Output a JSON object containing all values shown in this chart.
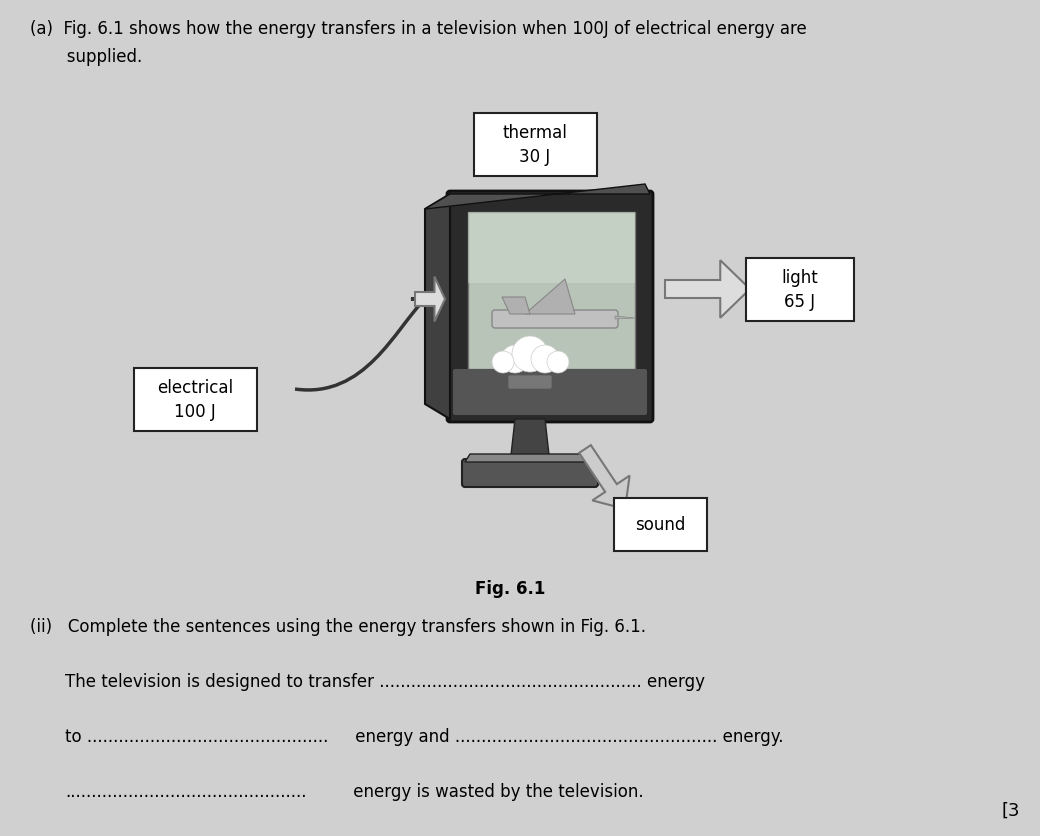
{
  "background_color": "#d0d0d0",
  "box_facecolor": "#ffffff",
  "box_edgecolor": "#222222",
  "arrow_color": "#888888",
  "cable_color": "#333333",
  "tv_body_dark": "#2a2a2a",
  "tv_body_mid": "#555555",
  "tv_screen_bg": "#b8c4b8",
  "tv_screen_light": "#d0dcd0",
  "tv_bezel_bottom": "#666666",
  "tv_stand_dark": "#3a3a3a",
  "tv_stand_light": "#888888",
  "font_size_title": 12,
  "font_size_boxes": 12,
  "font_size_fig_label": 12,
  "font_size_sentences": 12,
  "font_size_mark": 13,
  "title_line1": "(a)  Fig. 6.1 shows how the energy transfers in a television when 100J of electrical energy are",
  "title_line2": "       supplied.",
  "box_thermal_text": "thermal\n30 J",
  "box_light_text": "light\n65 J",
  "box_sound_text": "sound",
  "box_electrical_text": "electrical\n100 J",
  "fig_label": "Fig. 6.1",
  "part_ii": "(ii)   Complete the sentences using the energy transfers shown in Fig. 6.1.",
  "sent1": "The television is designed to transfer .................................................. energy",
  "sent2a": "to ..............................................",
  "sent2b": " energy and .................................................. energy.",
  "sent3a": "..............................................",
  "sent3b": " energy is wasted by the television.",
  "mark": "[3"
}
